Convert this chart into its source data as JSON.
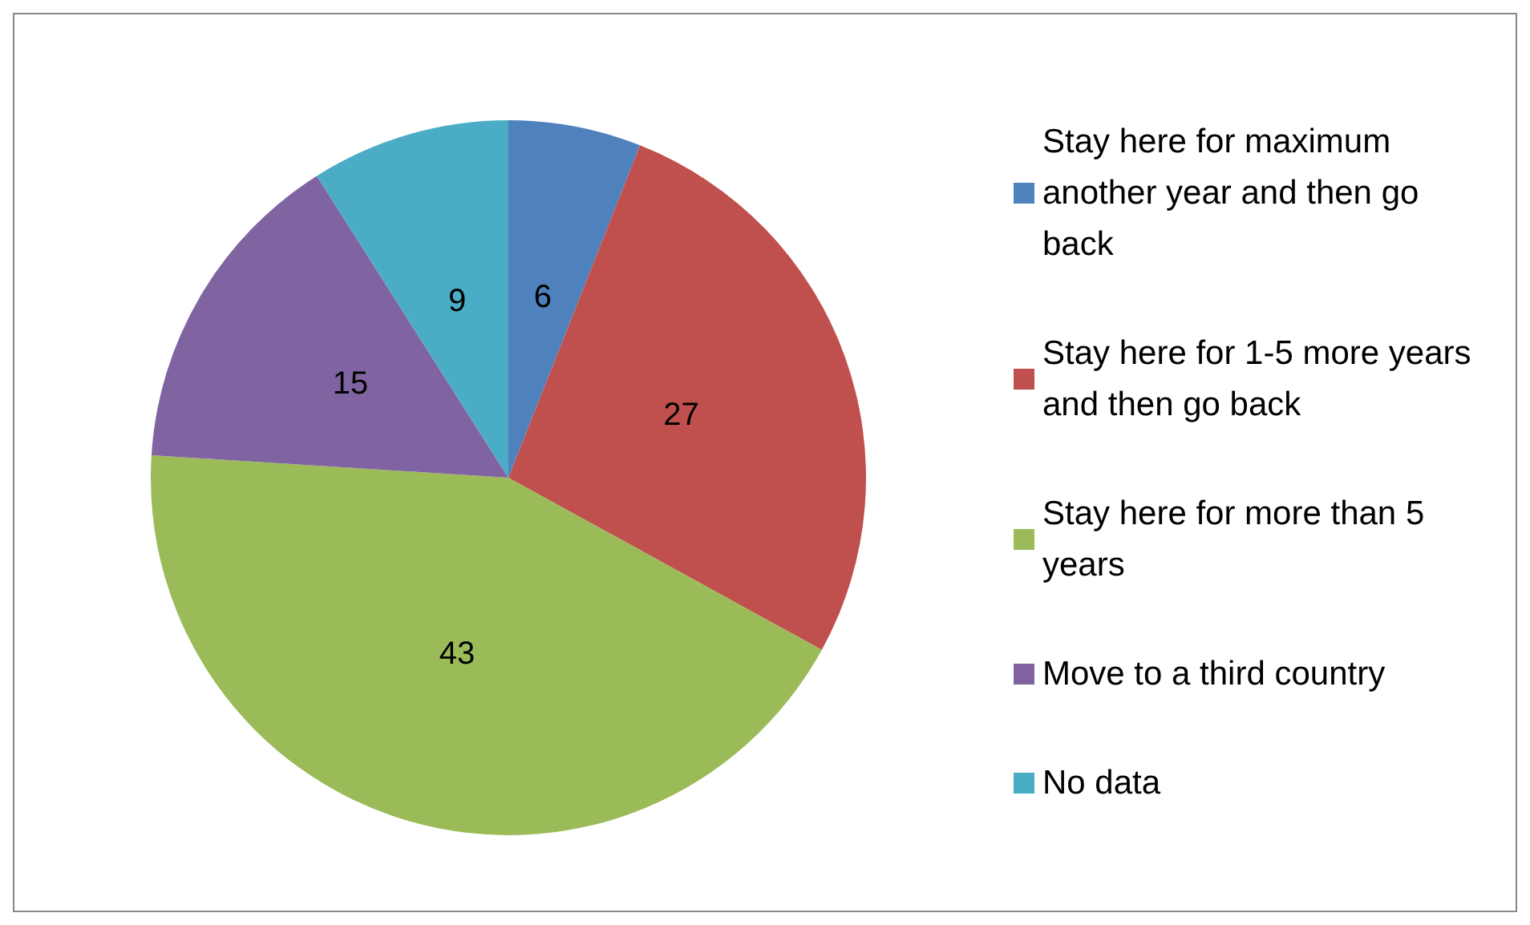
{
  "chart_data": {
    "type": "pie",
    "categories": [
      "Stay here for maximum another year and then go back",
      "Stay here for 1-5 more years and then go back",
      "Stay here for more than 5 years",
      "Move to a third country",
      "No data"
    ],
    "values": [
      6,
      27,
      43,
      15,
      9
    ],
    "colors": [
      "#4f81bd",
      "#c0504d",
      "#9bbb59",
      "#8064a2",
      "#4bacc6"
    ],
    "data_labels": true,
    "legend": "right"
  }
}
